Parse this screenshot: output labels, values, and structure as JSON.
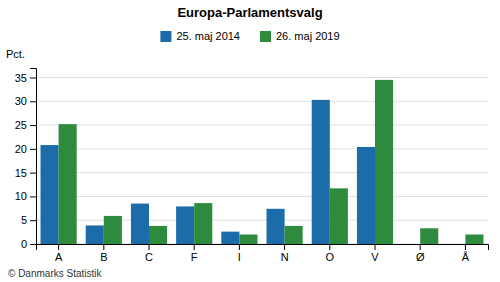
{
  "chart_data": {
    "type": "bar",
    "title": "Europa-Parlamentsvalg",
    "categories": [
      "A",
      "B",
      "C",
      "F",
      "I",
      "N",
      "O",
      "V",
      "Ø",
      "Å"
    ],
    "series": [
      {
        "name": "25. maj 2014",
        "color": "#1b6ca8",
        "values": [
          20.8,
          3.9,
          8.5,
          7.9,
          2.6,
          7.4,
          30.3,
          20.4,
          0,
          0
        ]
      },
      {
        "name": "26. maj 2019",
        "color": "#2e8b3e",
        "values": [
          25.2,
          5.9,
          3.8,
          8.6,
          2.0,
          3.8,
          11.7,
          34.5,
          3.3,
          2.0
        ]
      }
    ],
    "ylabel": "Pct.",
    "ylim": [
      0,
      37
    ],
    "yticks": [
      0,
      5,
      10,
      15,
      20,
      25,
      30,
      35
    ],
    "grid": true,
    "legend": "top",
    "annotations": [
      "© Danmarks Statistik"
    ]
  }
}
